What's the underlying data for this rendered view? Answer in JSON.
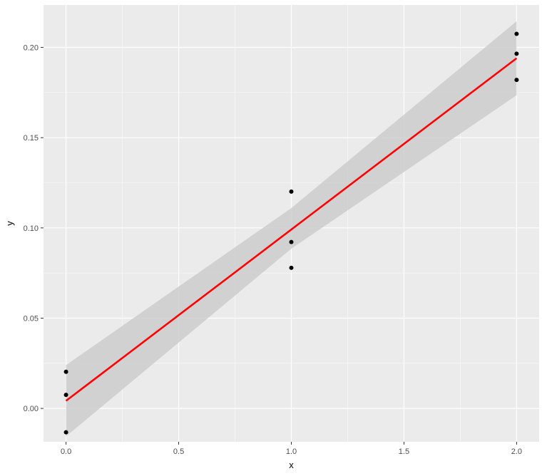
{
  "chart_data": {
    "type": "scatter",
    "xlabel": "x",
    "ylabel": "y",
    "xlim": [
      -0.1,
      2.1
    ],
    "ylim": [
      -0.0185,
      0.2235
    ],
    "x_ticks": [
      0.0,
      0.5,
      1.0,
      1.5,
      2.0
    ],
    "x_tick_labels": [
      "0.0",
      "0.5",
      "1.0",
      "1.5",
      "2.0"
    ],
    "y_ticks": [
      0.0,
      0.05,
      0.1,
      0.15,
      0.2
    ],
    "y_tick_labels": [
      "0.00",
      "0.05",
      "0.10",
      "0.15",
      "0.20"
    ],
    "grid": true,
    "background_color": "#ebebeb",
    "points": [
      {
        "x": 0,
        "y": 0.0203
      },
      {
        "x": 0,
        "y": 0.0075
      },
      {
        "x": 0,
        "y": -0.0132
      },
      {
        "x": 1,
        "y": 0.1201
      },
      {
        "x": 1,
        "y": 0.0922
      },
      {
        "x": 1,
        "y": 0.0779
      },
      {
        "x": 2,
        "y": 0.2075
      },
      {
        "x": 2,
        "y": 0.1965
      },
      {
        "x": 2,
        "y": 0.182
      }
    ],
    "point_color": "#000000",
    "fit_line": {
      "method": "linear regression",
      "x": [
        0,
        2
      ],
      "y": [
        0.0042,
        0.194
      ],
      "color": "#ff0000"
    },
    "confidence_band": {
      "x": [
        0,
        1,
        2
      ],
      "lower": [
        -0.0155,
        0.0885,
        0.1735
      ],
      "upper": [
        0.024,
        0.111,
        0.2145
      ],
      "color": "#cccccc"
    }
  }
}
